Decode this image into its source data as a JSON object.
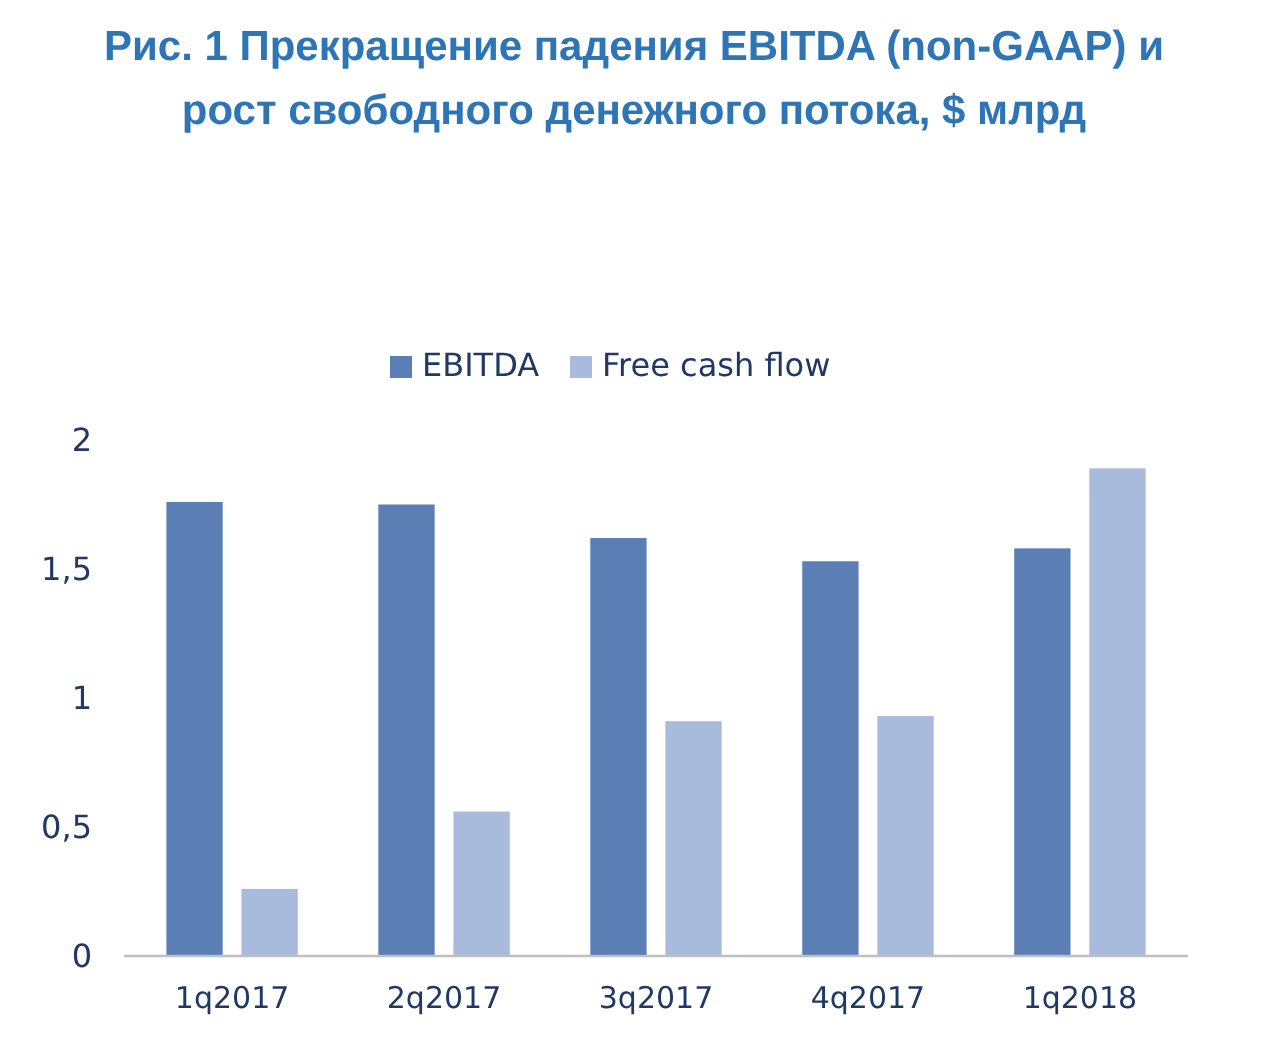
{
  "chart_data": {
    "type": "bar",
    "title": "Рис. 1 Прекращение падения EBITDA (non-GAAP) и рост свободного денежного потока, $ млрд",
    "categories": [
      "1q2017",
      "2q2017",
      "3q2017",
      "4q2017",
      "1q2018"
    ],
    "series": [
      {
        "name": "EBITDA",
        "color": "#5b7fb5",
        "values": [
          1.76,
          1.75,
          1.62,
          1.53,
          1.58
        ]
      },
      {
        "name": "Free cash flow",
        "color": "#a9bbdc",
        "values": [
          0.26,
          0.56,
          0.91,
          0.93,
          1.89
        ]
      }
    ],
    "ylim": [
      0,
      2
    ],
    "yticks": [
      0,
      {
        "value": 0.5,
        "label": "0,5"
      },
      1,
      {
        "value": 1.5,
        "label": "1,5"
      },
      2
    ],
    "grid": false,
    "legend": "top"
  }
}
